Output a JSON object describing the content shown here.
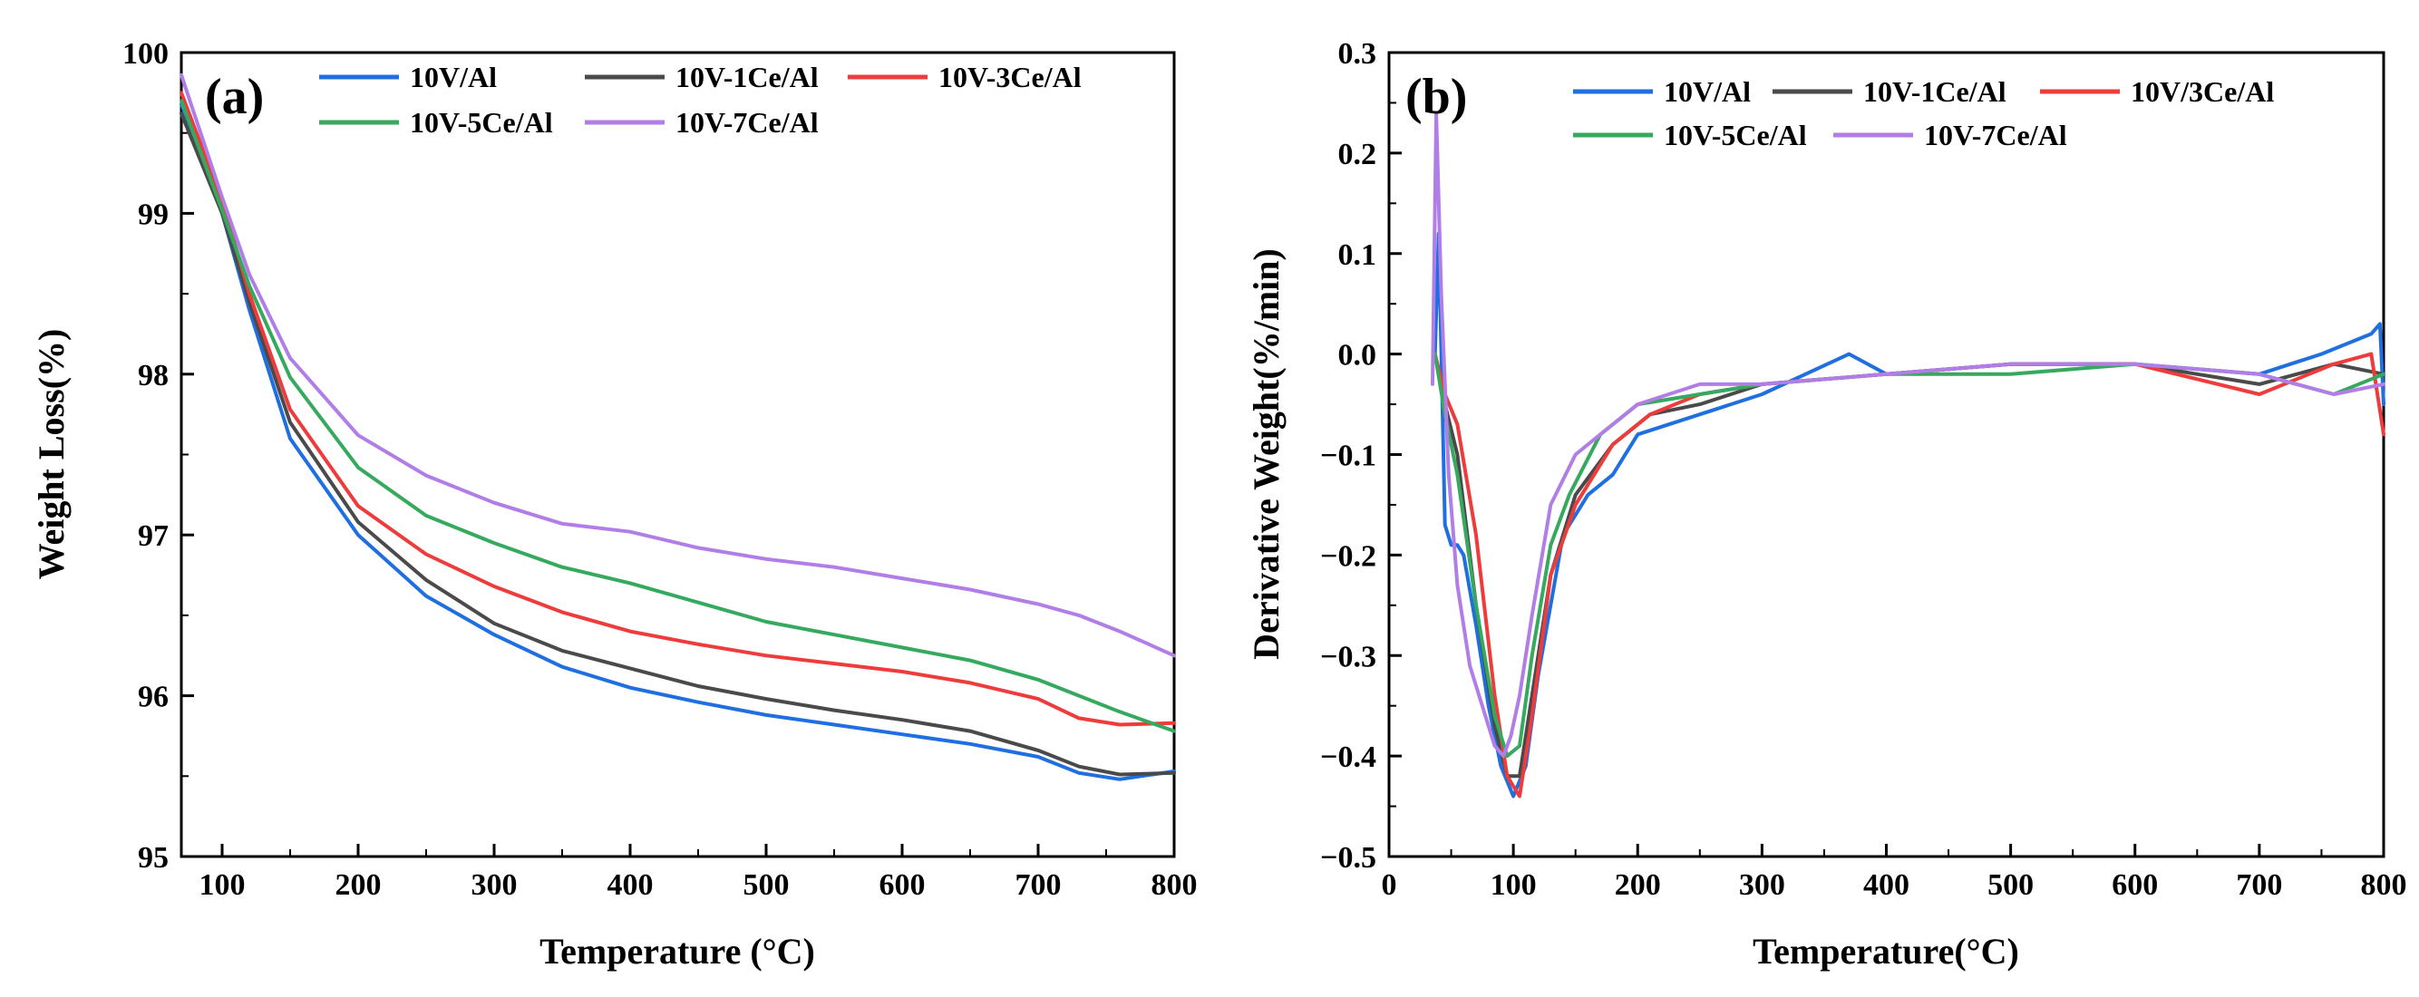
{
  "colors": {
    "10V/Al": "#1f6fe0",
    "10V-1Ce/Al": "#4a4a4a",
    "10V-3Ce/Al": "#ee3b3b",
    "10V-5Ce/Al": "#35a95e",
    "10V-7Ce/Al": "#b07ee6"
  },
  "chart_data": [
    {
      "type": "line",
      "panel_label": "(a)",
      "title": "",
      "xlabel": "Temperature (°C)",
      "ylabel": "Weight Loss(%)",
      "xlim": [
        70,
        800
      ],
      "ylim": [
        95,
        100
      ],
      "xticks": [
        100,
        200,
        300,
        400,
        500,
        600,
        700,
        800
      ],
      "yticks": [
        95,
        96,
        97,
        98,
        99,
        100
      ],
      "legend": [
        "10V/Al",
        "10V-1Ce/Al",
        "10V-3Ce/Al",
        "10V-5Ce/Al",
        "10V-7Ce/Al"
      ],
      "legend_placement": "top",
      "series": [
        {
          "name": "10V/Al",
          "color_key": "10V/Al",
          "x": [
            70,
            100,
            120,
            150,
            200,
            250,
            300,
            350,
            400,
            450,
            500,
            550,
            600,
            650,
            700,
            730,
            760,
            800
          ],
          "y": [
            99.68,
            99.0,
            98.4,
            97.6,
            97.0,
            96.62,
            96.38,
            96.18,
            96.05,
            95.96,
            95.88,
            95.82,
            95.76,
            95.7,
            95.62,
            95.52,
            95.48,
            95.53
          ]
        },
        {
          "name": "10V-1Ce/Al",
          "color_key": "10V-1Ce/Al",
          "x": [
            70,
            100,
            120,
            150,
            200,
            250,
            300,
            350,
            400,
            450,
            500,
            550,
            600,
            650,
            700,
            730,
            760,
            800
          ],
          "y": [
            99.62,
            99.0,
            98.45,
            97.7,
            97.08,
            96.72,
            96.45,
            96.28,
            96.17,
            96.06,
            95.98,
            95.91,
            95.85,
            95.78,
            95.66,
            95.56,
            95.51,
            95.52
          ]
        },
        {
          "name": "10V-3Ce/Al",
          "color_key": "10V-3Ce/Al",
          "x": [
            70,
            100,
            120,
            150,
            200,
            250,
            300,
            350,
            400,
            450,
            500,
            550,
            600,
            650,
            700,
            730,
            760,
            800
          ],
          "y": [
            99.75,
            99.08,
            98.5,
            97.78,
            97.18,
            96.88,
            96.68,
            96.52,
            96.4,
            96.32,
            96.25,
            96.2,
            96.15,
            96.08,
            95.98,
            95.86,
            95.82,
            95.83
          ]
        },
        {
          "name": "10V-5Ce/Al",
          "color_key": "10V-5Ce/Al",
          "x": [
            70,
            100,
            120,
            150,
            200,
            250,
            300,
            350,
            400,
            450,
            500,
            550,
            600,
            650,
            700,
            730,
            760,
            800
          ],
          "y": [
            99.7,
            99.02,
            98.55,
            97.98,
            97.42,
            97.12,
            96.95,
            96.8,
            96.7,
            96.58,
            96.46,
            96.38,
            96.3,
            96.22,
            96.1,
            96.0,
            95.9,
            95.78
          ]
        },
        {
          "name": "10V-7Ce/Al",
          "color_key": "10V-7Ce/Al",
          "x": [
            70,
            100,
            120,
            150,
            200,
            250,
            300,
            350,
            400,
            450,
            500,
            550,
            600,
            650,
            700,
            730,
            760,
            800
          ],
          "y": [
            99.86,
            99.1,
            98.62,
            98.1,
            97.62,
            97.37,
            97.2,
            97.07,
            97.02,
            96.92,
            96.85,
            96.8,
            96.73,
            96.66,
            96.57,
            96.5,
            96.4,
            96.25
          ]
        }
      ]
    },
    {
      "type": "line",
      "panel_label": "(b)",
      "title": "",
      "xlabel": "Temperature(°C)",
      "ylabel": "Derivative Weight(%/min)",
      "xlim": [
        0,
        800
      ],
      "ylim": [
        -0.5,
        0.3
      ],
      "xticks": [
        0,
        100,
        200,
        300,
        400,
        500,
        600,
        700,
        800
      ],
      "yticks": [
        -0.5,
        -0.4,
        -0.3,
        -0.2,
        -0.1,
        0.0,
        0.1,
        0.2,
        0.3
      ],
      "ytick_labels": [
        "−0.5",
        "−0.4",
        "−0.3",
        "−0.2",
        "−0.1",
        "0.0",
        "0.1",
        "0.2",
        "0.3"
      ],
      "legend": [
        "10V/Al",
        "10V-1Ce/Al",
        "10V/3Ce/Al",
        "10V-5Ce/Al",
        "10V-7Ce/Al"
      ],
      "legend_placement": "top",
      "series": [
        {
          "name": "10V/Al",
          "color_key": "10V/Al",
          "x": [
            37,
            40,
            45,
            50,
            55,
            60,
            70,
            80,
            90,
            100,
            110,
            120,
            140,
            160,
            180,
            200,
            250,
            300,
            370,
            400,
            500,
            600,
            700,
            750,
            790,
            797,
            800
          ],
          "y": [
            0.0,
            0.12,
            -0.17,
            -0.19,
            -0.19,
            -0.2,
            -0.27,
            -0.35,
            -0.41,
            -0.44,
            -0.41,
            -0.32,
            -0.18,
            -0.14,
            -0.12,
            -0.08,
            -0.06,
            -0.04,
            0.0,
            -0.02,
            -0.01,
            -0.01,
            -0.02,
            -0.0,
            0.02,
            0.03,
            -0.05
          ]
        },
        {
          "name": "10V-1Ce/Al",
          "color_key": "10V-1Ce/Al",
          "x": [
            37,
            45,
            55,
            70,
            85,
            95,
            105,
            115,
            130,
            150,
            180,
            210,
            250,
            300,
            400,
            500,
            600,
            700,
            760,
            800
          ],
          "y": [
            0.0,
            -0.05,
            -0.1,
            -0.25,
            -0.37,
            -0.42,
            -0.42,
            -0.34,
            -0.22,
            -0.14,
            -0.09,
            -0.06,
            -0.05,
            -0.03,
            -0.02,
            -0.01,
            -0.01,
            -0.03,
            -0.01,
            -0.02
          ]
        },
        {
          "name": "10V-3Ce/Al",
          "color_key": "10V-3Ce/Al",
          "x": [
            37,
            45,
            55,
            70,
            85,
            95,
            105,
            115,
            130,
            150,
            180,
            210,
            250,
            300,
            400,
            500,
            600,
            700,
            760,
            790,
            800
          ],
          "y": [
            0.0,
            -0.04,
            -0.07,
            -0.18,
            -0.34,
            -0.42,
            -0.44,
            -0.36,
            -0.22,
            -0.15,
            -0.09,
            -0.06,
            -0.04,
            -0.03,
            -0.02,
            -0.01,
            -0.01,
            -0.04,
            -0.01,
            0.0,
            -0.08
          ]
        },
        {
          "name": "10V-5Ce/Al",
          "color_key": "10V-5Ce/Al",
          "x": [
            37,
            45,
            55,
            70,
            85,
            95,
            105,
            115,
            130,
            145,
            170,
            200,
            250,
            300,
            400,
            500,
            600,
            700,
            760,
            800
          ],
          "y": [
            0.0,
            -0.06,
            -0.12,
            -0.25,
            -0.36,
            -0.4,
            -0.39,
            -0.3,
            -0.19,
            -0.14,
            -0.08,
            -0.05,
            -0.04,
            -0.03,
            -0.02,
            -0.02,
            -0.01,
            -0.02,
            -0.04,
            -0.02
          ]
        },
        {
          "name": "10V-7Ce/Al",
          "color_key": "10V-7Ce/Al",
          "x": [
            35,
            38,
            42,
            48,
            55,
            65,
            75,
            85,
            92,
            98,
            105,
            115,
            130,
            150,
            170,
            200,
            250,
            300,
            400,
            500,
            600,
            700,
            760,
            800
          ],
          "y": [
            -0.03,
            0.24,
            0.06,
            -0.12,
            -0.23,
            -0.31,
            -0.35,
            -0.39,
            -0.4,
            -0.38,
            -0.34,
            -0.26,
            -0.15,
            -0.1,
            -0.08,
            -0.05,
            -0.03,
            -0.03,
            -0.02,
            -0.01,
            -0.01,
            -0.02,
            -0.04,
            -0.03
          ]
        }
      ]
    }
  ]
}
